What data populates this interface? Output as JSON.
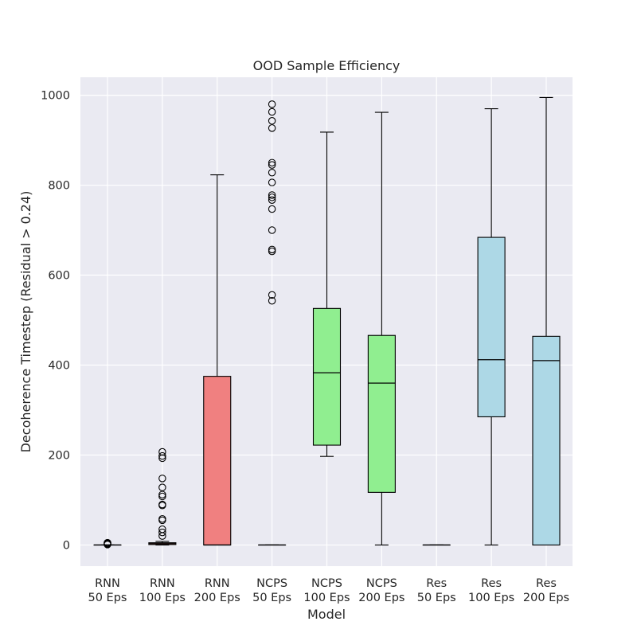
{
  "chart_data": {
    "type": "box",
    "title": "OOD Sample Efficiency",
    "xlabel": "Model",
    "ylabel": "Decoherence Timestep (Residual > 0.24)",
    "ylim": [
      -47,
      1040
    ],
    "yticks": [
      0,
      200,
      400,
      600,
      800,
      1000
    ],
    "grid": true,
    "categories": [
      [
        "RNN",
        "50 Eps"
      ],
      [
        "RNN",
        "100 Eps"
      ],
      [
        "RNN",
        "200 Eps"
      ],
      [
        "NCPS",
        "50 Eps"
      ],
      [
        "NCPS",
        "100 Eps"
      ],
      [
        "NCPS",
        "200 Eps"
      ],
      [
        "Res",
        "50 Eps"
      ],
      [
        "Res",
        "100 Eps"
      ],
      [
        "Res",
        "200 Eps"
      ]
    ],
    "colors": {
      "RNN": "#f08080",
      "NCPS": "#90ee90",
      "Res": "#add8e6",
      "background": "#eaeaf2",
      "grid": "#ffffff"
    },
    "boxes": [
      {
        "group": "RNN",
        "whisker_low": 0,
        "q1": 0,
        "median": 0,
        "q3": 0,
        "whisker_high": 0,
        "outliers": [
          1,
          2,
          3,
          4,
          5
        ]
      },
      {
        "group": "RNN",
        "whisker_low": 0,
        "q1": 1,
        "median": 3,
        "q3": 5,
        "whisker_high": 8,
        "outliers": [
          20,
          28,
          35,
          55,
          58,
          88,
          90,
          108,
          112,
          128,
          148,
          193,
          198,
          207
        ]
      },
      {
        "group": "RNN",
        "whisker_low": 0,
        "q1": 0,
        "median": 0,
        "q3": 375,
        "whisker_high": 823,
        "outliers": []
      },
      {
        "group": "NCPS",
        "whisker_low": 0,
        "q1": 0,
        "median": 0,
        "q3": 0,
        "whisker_high": 0,
        "outliers": [
          543,
          556,
          653,
          657,
          700,
          747,
          767,
          773,
          778,
          806,
          828,
          845,
          850,
          927,
          943,
          963,
          980
        ]
      },
      {
        "group": "NCPS",
        "whisker_low": 197,
        "q1": 222,
        "median": 383,
        "q3": 526,
        "whisker_high": 918,
        "outliers": []
      },
      {
        "group": "NCPS",
        "whisker_low": 0,
        "q1": 117,
        "median": 360,
        "q3": 466,
        "whisker_high": 962,
        "outliers": []
      },
      {
        "group": "Res",
        "whisker_low": 0,
        "q1": 0,
        "median": 0,
        "q3": 0,
        "whisker_high": 0,
        "outliers": []
      },
      {
        "group": "Res",
        "whisker_low": 0,
        "q1": 285,
        "median": 412,
        "q3": 684,
        "whisker_high": 970,
        "outliers": []
      },
      {
        "group": "Res",
        "whisker_low": 0,
        "q1": 0,
        "median": 410,
        "q3": 464,
        "whisker_high": 995,
        "outliers": []
      }
    ]
  }
}
